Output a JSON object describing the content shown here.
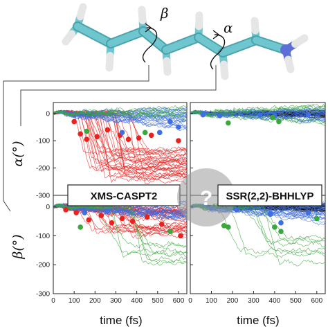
{
  "molecule": {
    "rotation_labels": [
      "β",
      "α"
    ],
    "atom_colors": {
      "carbon": "#6fc6cf",
      "hydrogen": "#f2f2f2",
      "nitrogen": "#5c6fd6"
    }
  },
  "methods": {
    "left": "XMS-CASPT2",
    "right": "SSR(2,2)-BHHLYP",
    "question_mark": "?"
  },
  "colors": {
    "trans_red": "#e8221f",
    "cis_blue": "#3f6ee0",
    "green": "#3aa83e",
    "black_bundle": "#111111",
    "badge_gray": "#9a9a9a"
  },
  "axes": {
    "y_ticks": [
      0,
      -100,
      -200,
      -300
    ],
    "x_ticks": [
      0,
      100,
      200,
      300,
      400,
      500,
      600
    ],
    "y_labels": [
      "α(°)",
      "β(°)"
    ],
    "x_title": "time (fs)"
  },
  "chart_data": [
    {
      "type": "line",
      "panel": "left-top",
      "method": "XMS-CASPT2",
      "ylabel": "α(°)",
      "xlim": [
        0,
        640
      ],
      "ylim": [
        -300,
        40
      ],
      "series_summary": [
        {
          "color": "red",
          "trend": "drops from 0 to between -150 and -250 after 100-300 fs",
          "end_range": [
            -250,
            -130
          ]
        },
        {
          "color": "blue",
          "trend": "stays near 0",
          "end_range": [
            -60,
            20
          ]
        },
        {
          "color": "green",
          "trend": "few trajectories rising to about 20",
          "end_range": [
            -20,
            30
          ]
        }
      ],
      "hop_points": [
        {
          "t": 100,
          "y": -30,
          "c": "red"
        },
        {
          "t": 130,
          "y": -75,
          "c": "red"
        },
        {
          "t": 160,
          "y": -95,
          "c": "red"
        },
        {
          "t": 210,
          "y": -85,
          "c": "red"
        },
        {
          "t": 260,
          "y": -60,
          "c": "red"
        },
        {
          "t": 320,
          "y": -80,
          "c": "red"
        },
        {
          "t": 360,
          "y": -95,
          "c": "red"
        },
        {
          "t": 410,
          "y": -90,
          "c": "red"
        },
        {
          "t": 470,
          "y": -80,
          "c": "red"
        },
        {
          "t": 600,
          "y": -100,
          "c": "red"
        },
        {
          "t": 330,
          "y": -70,
          "c": "blue"
        },
        {
          "t": 510,
          "y": -70,
          "c": "blue"
        },
        {
          "t": 560,
          "y": -30,
          "c": "blue"
        },
        {
          "t": 600,
          "y": -50,
          "c": "blue"
        },
        {
          "t": 160,
          "y": -65,
          "c": "green"
        },
        {
          "t": 440,
          "y": -70,
          "c": "green"
        }
      ]
    },
    {
      "type": "line",
      "panel": "left-bottom",
      "method": "XMS-CASPT2",
      "ylabel": "β(°)",
      "xlim": [
        0,
        640
      ],
      "ylim": [
        -300,
        40
      ],
      "series_summary": [
        {
          "color": "red",
          "trend": "stays near 0 with spread to -100",
          "end_range": [
            -100,
            10
          ]
        },
        {
          "color": "blue",
          "trend": "stays near 0",
          "end_range": [
            -40,
            20
          ]
        },
        {
          "color": "green",
          "trend": "drops to about -160 to -200 after 150 fs",
          "end_range": [
            -200,
            -120
          ]
        }
      ],
      "hop_points": [
        {
          "t": 60,
          "y": -10,
          "c": "red"
        },
        {
          "t": 110,
          "y": -20,
          "c": "red"
        },
        {
          "t": 170,
          "y": -45,
          "c": "red"
        },
        {
          "t": 230,
          "y": -30,
          "c": "red"
        },
        {
          "t": 280,
          "y": -55,
          "c": "red"
        },
        {
          "t": 330,
          "y": -40,
          "c": "red"
        },
        {
          "t": 380,
          "y": -50,
          "c": "red"
        },
        {
          "t": 450,
          "y": -35,
          "c": "red"
        },
        {
          "t": 520,
          "y": -60,
          "c": "red"
        },
        {
          "t": 610,
          "y": -100,
          "c": "red"
        },
        {
          "t": 150,
          "y": -20,
          "c": "blue"
        },
        {
          "t": 260,
          "y": -15,
          "c": "blue"
        },
        {
          "t": 130,
          "y": -70,
          "c": "green"
        },
        {
          "t": 560,
          "y": -85,
          "c": "green"
        }
      ]
    },
    {
      "type": "line",
      "panel": "right-top",
      "method": "SSR(2,2)-BHHLYP",
      "ylabel": "α(°)",
      "xlim": [
        0,
        640
      ],
      "ylim": [
        -300,
        40
      ],
      "series_summary": [
        {
          "color": "black",
          "trend": "dense bundle oscillating near 0",
          "end_range": [
            -15,
            10
          ]
        },
        {
          "color": "blue",
          "trend": "stays near 0",
          "end_range": [
            -30,
            15
          ]
        },
        {
          "color": "green",
          "trend": "mostly near 0, some rise to about 30",
          "end_range": [
            -40,
            30
          ]
        }
      ],
      "hop_points": [
        {
          "t": 60,
          "y": -5,
          "c": "blue"
        },
        {
          "t": 140,
          "y": -8,
          "c": "blue"
        },
        {
          "t": 330,
          "y": -6,
          "c": "blue"
        },
        {
          "t": 400,
          "y": -10,
          "c": "blue"
        },
        {
          "t": 560,
          "y": -5,
          "c": "blue"
        },
        {
          "t": 180,
          "y": -35,
          "c": "green"
        },
        {
          "t": 390,
          "y": -15,
          "c": "green"
        },
        {
          "t": 420,
          "y": -30,
          "c": "green"
        }
      ]
    },
    {
      "type": "line",
      "panel": "right-bottom",
      "method": "SSR(2,2)-BHHLYP",
      "ylabel": "β(°)",
      "xlim": [
        0,
        640
      ],
      "ylim": [
        -300,
        40
      ],
      "series_summary": [
        {
          "color": "black",
          "trend": "dense bundle oscillating near 0",
          "end_range": [
            -15,
            10
          ]
        },
        {
          "color": "blue",
          "trend": "stays near 0, a few drop toward -50",
          "end_range": [
            -60,
            10
          ]
        },
        {
          "color": "green",
          "trend": "drops to about -170 to -200 after 150-450 fs",
          "end_range": [
            -200,
            -100
          ]
        }
      ],
      "hop_points": [
        {
          "t": 100,
          "y": -5,
          "c": "blue"
        },
        {
          "t": 220,
          "y": -10,
          "c": "blue"
        },
        {
          "t": 380,
          "y": -25,
          "c": "blue"
        },
        {
          "t": 430,
          "y": -55,
          "c": "blue"
        },
        {
          "t": 560,
          "y": -20,
          "c": "blue"
        },
        {
          "t": 160,
          "y": -65,
          "c": "green"
        },
        {
          "t": 180,
          "y": -70,
          "c": "green"
        },
        {
          "t": 400,
          "y": -70,
          "c": "green"
        },
        {
          "t": 430,
          "y": -85,
          "c": "green"
        },
        {
          "t": 600,
          "y": -40,
          "c": "green"
        }
      ]
    }
  ]
}
